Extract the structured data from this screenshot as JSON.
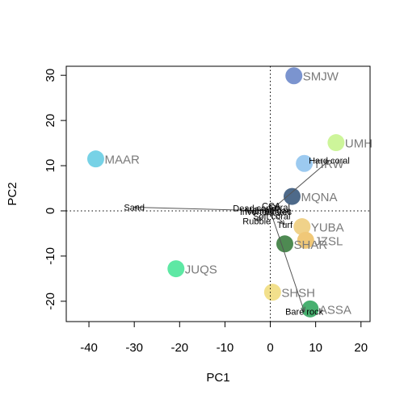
{
  "chart_data": {
    "type": "scatter",
    "title": "",
    "xlabel": "PC1",
    "ylabel": "PC2",
    "xlim": [
      -45,
      22
    ],
    "ylim": [
      -24.5,
      32
    ],
    "xticks": [
      -40,
      -30,
      -20,
      -10,
      0,
      10,
      20
    ],
    "yticks": [
      -20,
      -10,
      0,
      10,
      20,
      30
    ],
    "grid": false,
    "reference_lines": {
      "x": 0,
      "y": 0,
      "style": "dotted"
    },
    "sites": [
      {
        "label": "SMJW",
        "x": 5.2,
        "y": 29.9,
        "color": "#7b94cf"
      },
      {
        "label": "UMH",
        "x": 14.5,
        "y": 15.1,
        "color": "#cdf59a"
      },
      {
        "label": "MAAR",
        "x": -38.5,
        "y": 11.5,
        "color": "#77d2e6"
      },
      {
        "label": "TIRW",
        "x": 7.5,
        "y": 10.5,
        "color": "#9ccaf0"
      },
      {
        "label": "MQNA",
        "x": 4.8,
        "y": 3.2,
        "color": "#4e6a8a"
      },
      {
        "label": "YUBA",
        "x": 7.0,
        "y": -3.5,
        "color": "#f0d28a"
      },
      {
        "label": "JZSL",
        "x": 7.8,
        "y": -6.5,
        "color": "#f0c878"
      },
      {
        "label": "SHAR",
        "x": 3.2,
        "y": -7.3,
        "color": "#4e8a52"
      },
      {
        "label": "JUQS",
        "x": -20.8,
        "y": -12.8,
        "color": "#5ee8a4"
      },
      {
        "label": "SHSH",
        "x": 0.5,
        "y": -18.0,
        "color": "#f2e08c"
      },
      {
        "label": "ASSA",
        "x": 8.8,
        "y": -21.7,
        "color": "#48b070"
      }
    ],
    "vectors": [
      {
        "label": "Hard coral",
        "x": 13.0,
        "y": 11.2
      },
      {
        "label": "Sand",
        "x": -30.0,
        "y": 0.8
      },
      {
        "label": "Bare rock",
        "x": 7.5,
        "y": -22.3
      },
      {
        "label": "Turf",
        "x": 3.2,
        "y": -3.0
      },
      {
        "label": "Soft coral",
        "x": 0.3,
        "y": -1.2
      },
      {
        "label": "Rubble",
        "x": -3.0,
        "y": -2.2
      },
      {
        "label": "Dead coral",
        "x": -3.5,
        "y": 0.6
      },
      {
        "label": "Coral",
        "x": 2.0,
        "y": 0.8
      },
      {
        "label": "CCA",
        "x": 0.2,
        "y": 1.2
      },
      {
        "label": "Invertebrates",
        "x": -1.0,
        "y": -0.2
      },
      {
        "label": "Macroalgae",
        "x": -0.5,
        "y": 0.1
      }
    ]
  }
}
